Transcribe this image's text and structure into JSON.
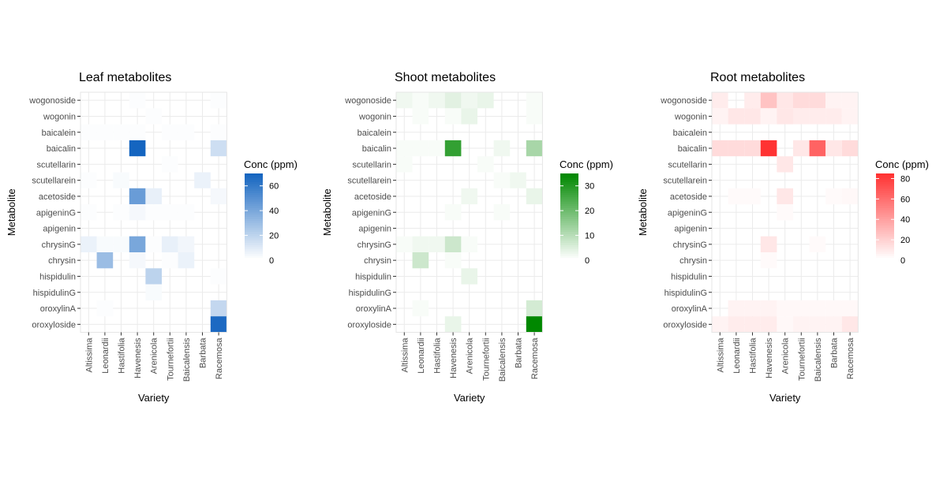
{
  "chart_data": [
    {
      "type": "heatmap",
      "title": "Leaf metabolites",
      "xlabel": "Variety",
      "ylabel": "Metabolite",
      "x_categories": [
        "Altissima",
        "Leonardii",
        "Hastifolia",
        "Havenesis",
        "Arenicola",
        "Tournefortii",
        "Baicalensis",
        "Barbata",
        "Racemosa"
      ],
      "y_categories": [
        "wogonoside",
        "wogonin",
        "baicalein",
        "baicalin",
        "scutellarin",
        "scutellarein",
        "acetoside",
        "apigeninG",
        "apigenin",
        "chrysinG",
        "chrysin",
        "hispidulin",
        "hispidulinG",
        "oroxylinA",
        "oroxyloside"
      ],
      "legend_title": "Conc (ppm)",
      "legend_ticks": [
        0,
        20,
        40,
        60
      ],
      "legend_range": [
        0,
        70
      ],
      "color_high": "#1565c0",
      "color_low": "#ffffff",
      "values": [
        [
          0,
          0,
          0,
          1,
          0,
          0,
          0,
          0,
          1
        ],
        [
          0,
          0,
          0,
          0,
          1,
          0,
          0,
          0,
          0
        ],
        [
          1,
          1,
          1,
          1,
          0,
          1,
          1,
          0,
          1
        ],
        [
          0,
          0,
          0,
          70,
          0,
          0,
          0,
          0,
          15
        ],
        [
          0,
          0,
          0,
          0,
          0,
          1,
          0,
          0,
          0
        ],
        [
          1,
          0,
          2,
          0,
          0,
          0,
          0,
          6,
          0
        ],
        [
          0,
          0,
          0,
          45,
          7,
          0,
          0,
          0,
          3
        ],
        [
          1,
          0,
          1,
          3,
          1,
          1,
          1,
          0,
          0
        ],
        [
          0,
          0,
          0,
          0,
          0,
          0,
          0,
          0,
          0
        ],
        [
          6,
          2,
          2,
          40,
          1,
          7,
          4,
          0,
          0
        ],
        [
          0,
          30,
          0,
          3,
          0,
          1,
          6,
          0,
          0
        ],
        [
          0,
          0,
          0,
          0,
          20,
          0,
          0,
          0,
          1
        ],
        [
          0,
          0,
          0,
          0,
          2,
          0,
          0,
          0,
          0
        ],
        [
          0,
          1,
          0,
          0,
          0,
          0,
          0,
          0,
          18
        ],
        [
          0,
          0,
          0,
          0,
          0,
          0,
          0,
          0,
          68
        ]
      ]
    },
    {
      "type": "heatmap",
      "title": "Shoot metabolites",
      "xlabel": "Variety",
      "ylabel": "Metabolite",
      "x_categories": [
        "Altissima",
        "Leonardii",
        "Hastifolia",
        "Havenesis",
        "Arenicola",
        "Tournefortii",
        "Baicalensis",
        "Barbata",
        "Racemosa"
      ],
      "y_categories": [
        "wogonoside",
        "wogonin",
        "baicalein",
        "baicalin",
        "scutellarin",
        "scutellarein",
        "acetoside",
        "apigeninG",
        "apigenin",
        "chrysinG",
        "chrysin",
        "hispidulin",
        "hispidulinG",
        "oroxylinA",
        "oroxyloside"
      ],
      "legend_title": "Conc (ppm)",
      "legend_ticks": [
        0,
        10,
        20,
        30
      ],
      "legend_range": [
        0,
        35
      ],
      "color_high": "#008800",
      "color_low": "#ffffff",
      "values": [
        [
          2,
          1,
          2,
          4,
          2,
          3,
          0,
          0,
          1
        ],
        [
          0,
          1,
          0,
          1,
          3,
          0,
          0,
          0,
          1
        ],
        [
          0,
          0,
          0,
          0,
          0,
          0,
          0,
          0,
          0
        ],
        [
          1,
          1,
          1,
          28,
          0,
          0,
          2,
          0,
          12
        ],
        [
          1,
          0,
          0,
          0,
          0,
          1,
          0,
          0,
          0
        ],
        [
          0,
          0,
          0,
          0,
          0,
          0,
          1,
          2,
          0
        ],
        [
          0,
          0,
          0,
          0,
          2,
          0,
          0,
          0,
          3
        ],
        [
          0,
          0,
          0,
          1,
          0,
          0,
          1,
          0,
          0
        ],
        [
          0,
          0,
          0,
          0,
          0,
          0,
          0,
          0,
          0
        ],
        [
          1,
          2,
          2,
          7,
          1,
          0,
          0,
          0,
          0
        ],
        [
          0,
          7,
          0,
          1,
          0,
          0,
          0,
          0,
          0
        ],
        [
          0,
          0,
          0,
          0,
          3,
          0,
          0,
          0,
          0
        ],
        [
          0,
          0,
          0,
          0,
          0,
          0,
          0,
          0,
          0
        ],
        [
          0,
          1,
          0,
          0,
          0,
          0,
          0,
          0,
          6
        ],
        [
          0,
          0,
          0,
          3,
          0,
          0,
          0,
          0,
          35
        ]
      ]
    },
    {
      "type": "heatmap",
      "title": "Root metabolites",
      "xlabel": "Variety",
      "ylabel": "Metabolite",
      "x_categories": [
        "Altissima",
        "Leonardii",
        "Hastifolia",
        "Havenesis",
        "Arenicola",
        "Tournefortii",
        "Baicalensis",
        "Barbata",
        "Racemosa"
      ],
      "y_categories": [
        "wogonoside",
        "wogonin",
        "baicalein",
        "baicalin",
        "scutellarin",
        "scutellarein",
        "acetoside",
        "apigeninG",
        "apigenin",
        "chrysinG",
        "chrysin",
        "hispidulin",
        "hispidulinG",
        "oroxylinA",
        "oroxyloside"
      ],
      "legend_title": "Conc (ppm)",
      "legend_ticks": [
        0,
        20,
        40,
        60,
        80
      ],
      "legend_range": [
        0,
        85
      ],
      "color_high": "#ff3333",
      "color_low": "#ffffff",
      "values": [
        [
          8,
          0,
          8,
          25,
          10,
          15,
          15,
          5,
          5
        ],
        [
          5,
          10,
          10,
          5,
          10,
          8,
          8,
          8,
          5
        ],
        [
          0,
          0,
          0,
          0,
          0,
          0,
          0,
          0,
          0
        ],
        [
          15,
          15,
          15,
          85,
          0,
          10,
          65,
          10,
          15
        ],
        [
          0,
          0,
          0,
          0,
          10,
          0,
          0,
          0,
          0
        ],
        [
          0,
          0,
          0,
          0,
          0,
          0,
          0,
          0,
          0
        ],
        [
          0,
          2,
          2,
          0,
          10,
          0,
          0,
          2,
          3
        ],
        [
          0,
          0,
          0,
          0,
          2,
          0,
          0,
          0,
          0
        ],
        [
          0,
          0,
          0,
          0,
          0,
          0,
          0,
          0,
          0
        ],
        [
          0,
          0,
          0,
          10,
          0,
          0,
          2,
          0,
          0
        ],
        [
          0,
          0,
          0,
          2,
          0,
          0,
          0,
          0,
          0
        ],
        [
          0,
          0,
          0,
          0,
          0,
          0,
          0,
          0,
          0
        ],
        [
          0,
          0,
          0,
          0,
          0,
          0,
          0,
          0,
          0
        ],
        [
          0,
          5,
          5,
          5,
          3,
          3,
          3,
          3,
          3
        ],
        [
          5,
          8,
          8,
          8,
          3,
          5,
          5,
          5,
          10
        ]
      ]
    }
  ]
}
